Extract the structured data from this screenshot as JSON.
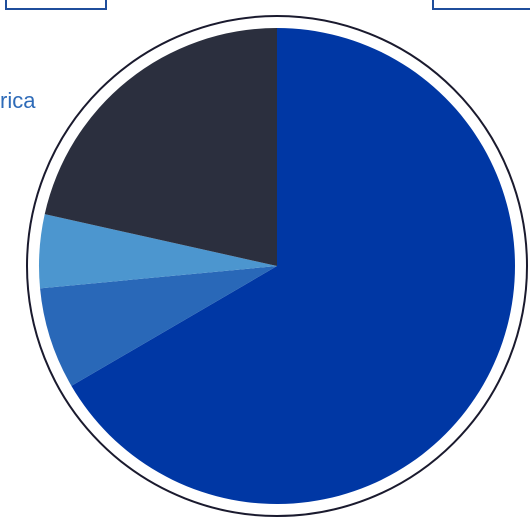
{
  "side_label": "rica",
  "colors": {
    "ring": "#1a1a2e",
    "top_boxes": "#1f4e9c",
    "label": "#2e6bb8"
  },
  "chart_data": {
    "type": "pie",
    "start": "12 o'clock",
    "direction": "clockwise",
    "slices": [
      {
        "value": 66.6,
        "color": "#0037a4"
      },
      {
        "value": 6.9,
        "color": "#2968b8"
      },
      {
        "value": 5.0,
        "color": "#4c96cf"
      },
      {
        "value": 21.5,
        "color": "#2b2f3e"
      }
    ]
  }
}
